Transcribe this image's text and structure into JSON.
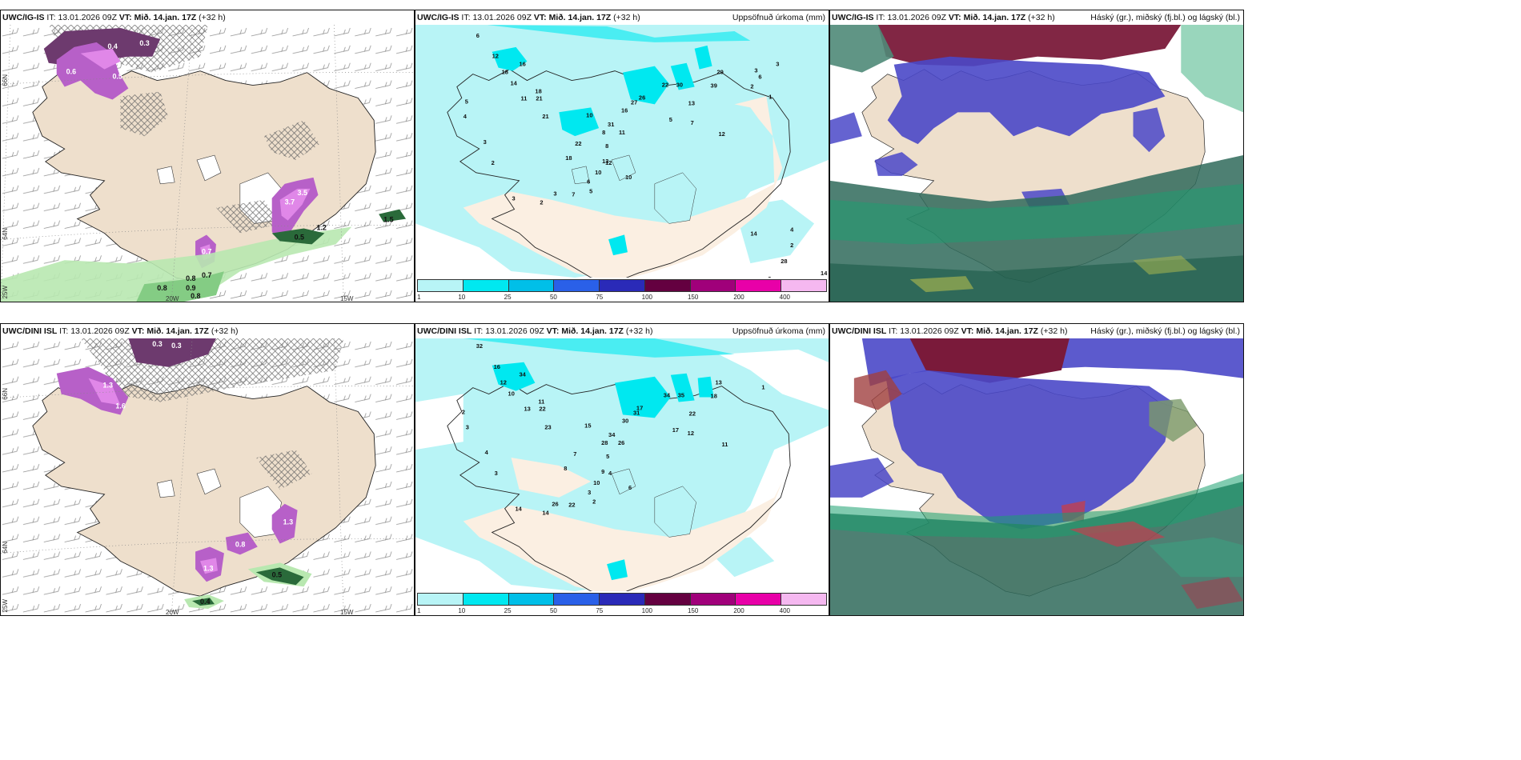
{
  "panels": [
    {
      "model": "UWC/IG-IS",
      "it_label": "IT:",
      "it": "13.01.2026 09Z",
      "vt_label": "VT:",
      "vt": "Mið. 14.jan. 17Z",
      "lead": "(+32 h)",
      "right_title": ""
    },
    {
      "model": "UWC/IG-IS",
      "it_label": "IT:",
      "it": "13.01.2026 09Z",
      "vt_label": "VT:",
      "vt": "Mið. 14.jan. 17Z",
      "lead": "(+32 h)",
      "right_title": "Uppsöfnuð úrkoma (mm)"
    },
    {
      "model": "UWC/IG-IS",
      "it_label": "IT:",
      "it": "13.01.2026 09Z",
      "vt_label": "VT:",
      "vt": "Mið. 14.jan. 17Z",
      "lead": "(+32 h)",
      "right_title": "Háský (gr.), miðský (fj.bl.) og lágský (bl.)"
    },
    {
      "model": "UWC/DINI ISL",
      "it_label": "IT:",
      "it": "13.01.2026 09Z",
      "vt_label": "VT:",
      "vt": "Mið. 14.jan. 17Z",
      "lead": "(+32 h)",
      "right_title": ""
    },
    {
      "model": "UWC/DINI ISL",
      "it_label": "IT:",
      "it": "13.01.2026 09Z",
      "vt_label": "VT:",
      "vt": "Mið. 14.jan. 17Z",
      "lead": "(+32 h)",
      "right_title": "Uppsöfnuð úrkoma (mm)"
    },
    {
      "model": "UWC/DINI ISL",
      "it_label": "IT:",
      "it": "13.01.2026 09Z",
      "vt_label": "VT:",
      "vt": "Mið. 14.jan. 17Z",
      "lead": "(+32 h)",
      "right_title": "Háský (gr.), miðský (fj.bl.) og lágský (bl.)"
    }
  ],
  "axis_ticks": {
    "lat_66": "66N",
    "lat_64": "64N",
    "lon_25": "25W",
    "lon_20": "20W",
    "lon_15": "15W"
  },
  "legend": {
    "colors": [
      "#b8f4f6",
      "#00e8f0",
      "#00bfe8",
      "#2a60e8",
      "#2a2ab8",
      "#640040",
      "#a0007a",
      "#e800a8",
      "#f5b8f0"
    ],
    "labels": [
      "1",
      "10",
      "25",
      "50",
      "75",
      "100",
      "150",
      "200",
      "400"
    ]
  },
  "precip_values_ig": [
    "6",
    "12",
    "18",
    "16",
    "14",
    "18",
    "21",
    "11",
    "21",
    "10",
    "8",
    "31",
    "11",
    "27",
    "16",
    "26",
    "22",
    "30",
    "13",
    "39",
    "29",
    "7",
    "12",
    "5",
    "10",
    "13",
    "10",
    "18",
    "22",
    "8",
    "12",
    "6",
    "5",
    "7",
    "3",
    "2",
    "3",
    "2",
    "3",
    "4",
    "5",
    "6",
    "3",
    "3",
    "2",
    "1",
    "14",
    "4",
    "2",
    "28",
    "11",
    "3",
    "14",
    "10",
    "3",
    "2"
  ],
  "precip_values_dini": [
    "32",
    "16",
    "12",
    "34",
    "10",
    "11",
    "22",
    "13",
    "23",
    "15",
    "28",
    "34",
    "26",
    "31",
    "30",
    "17",
    "34",
    "35",
    "22",
    "18",
    "13",
    "12",
    "11",
    "17",
    "10",
    "9",
    "6",
    "8",
    "7",
    "5",
    "4",
    "3",
    "2",
    "22",
    "26",
    "14",
    "14",
    "3",
    "4",
    "3",
    "2",
    "1"
  ],
  "precip_label_ig_pos": [
    [
      76,
      16
    ],
    [
      96,
      42
    ],
    [
      108,
      62
    ],
    [
      130,
      52
    ],
    [
      119,
      76
    ],
    [
      150,
      86
    ],
    [
      151,
      95
    ],
    [
      132,
      95
    ],
    [
      159,
      118
    ],
    [
      214,
      116
    ],
    [
      234,
      138
    ],
    [
      241,
      128
    ],
    [
      255,
      138
    ],
    [
      270,
      100
    ],
    [
      258,
      110
    ],
    [
      280,
      94
    ],
    [
      309,
      78
    ],
    [
      327,
      78
    ],
    [
      342,
      101
    ],
    [
      370,
      79
    ],
    [
      378,
      62
    ],
    [
      345,
      126
    ],
    [
      380,
      140
    ],
    [
      318,
      122
    ],
    [
      225,
      188
    ],
    [
      234,
      174
    ],
    [
      263,
      194
    ],
    [
      188,
      170
    ],
    [
      200,
      152
    ],
    [
      238,
      155
    ],
    [
      238,
      176
    ],
    [
      215,
      200
    ],
    [
      218,
      212
    ],
    [
      196,
      216
    ],
    [
      173,
      215
    ],
    [
      156,
      226
    ],
    [
      121,
      221
    ],
    [
      95,
      176
    ],
    [
      85,
      150
    ],
    [
      60,
      118
    ],
    [
      62,
      99
    ],
    [
      430,
      68
    ],
    [
      425,
      60
    ],
    [
      452,
      52
    ],
    [
      420,
      80
    ],
    [
      443,
      93
    ],
    [
      420,
      265
    ],
    [
      470,
      260
    ],
    [
      470,
      280
    ],
    [
      458,
      300
    ],
    [
      407,
      324
    ],
    [
      386,
      342
    ],
    [
      508,
      315
    ],
    [
      476,
      363
    ],
    [
      455,
      350
    ],
    [
      442,
      322
    ]
  ]
}
